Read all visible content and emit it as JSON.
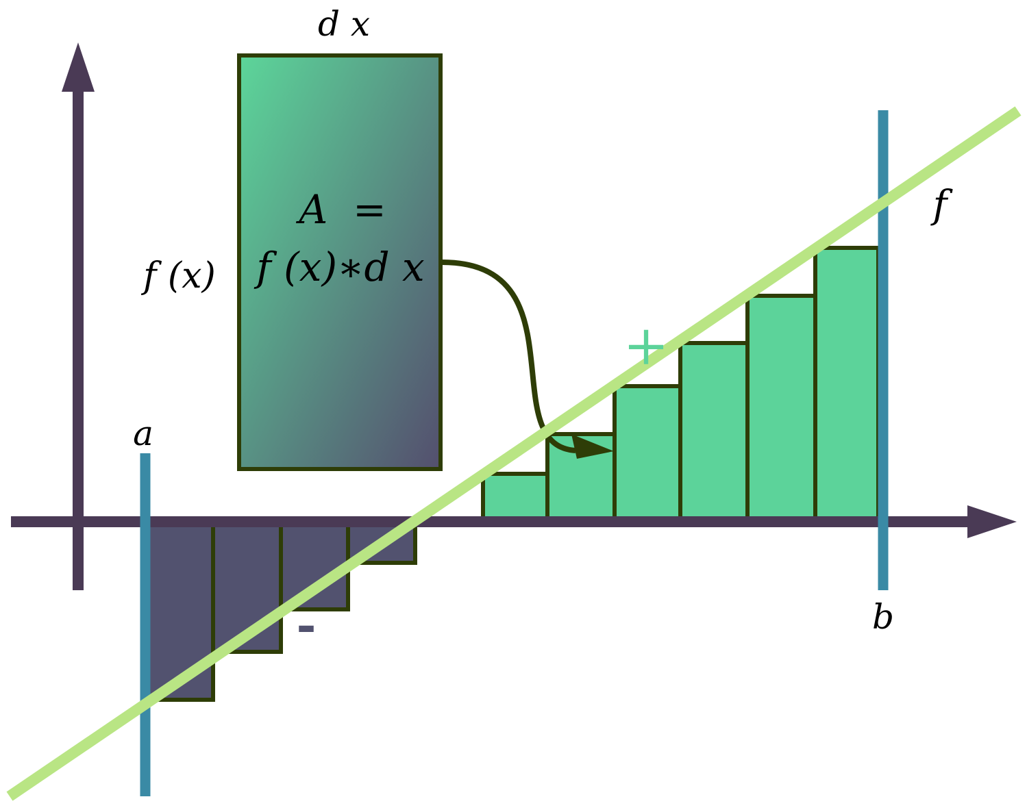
{
  "labels": {
    "dx": "d x",
    "area_line1": "A  =",
    "area_line2": "f (x)∗d x",
    "fx": "f (x)",
    "a": "a",
    "b": "b",
    "f": "f",
    "plus": "+",
    "minus": "-"
  },
  "colors": {
    "axis": "#4a3a55",
    "line": "#b9e584",
    "bound": "#3a8aa5",
    "positive": "#5cd39a",
    "negative": "#52526f",
    "outline": "#2e3d07",
    "gradient_top": "#5cd69a",
    "gradient_bottom": "#544f6e"
  }
}
